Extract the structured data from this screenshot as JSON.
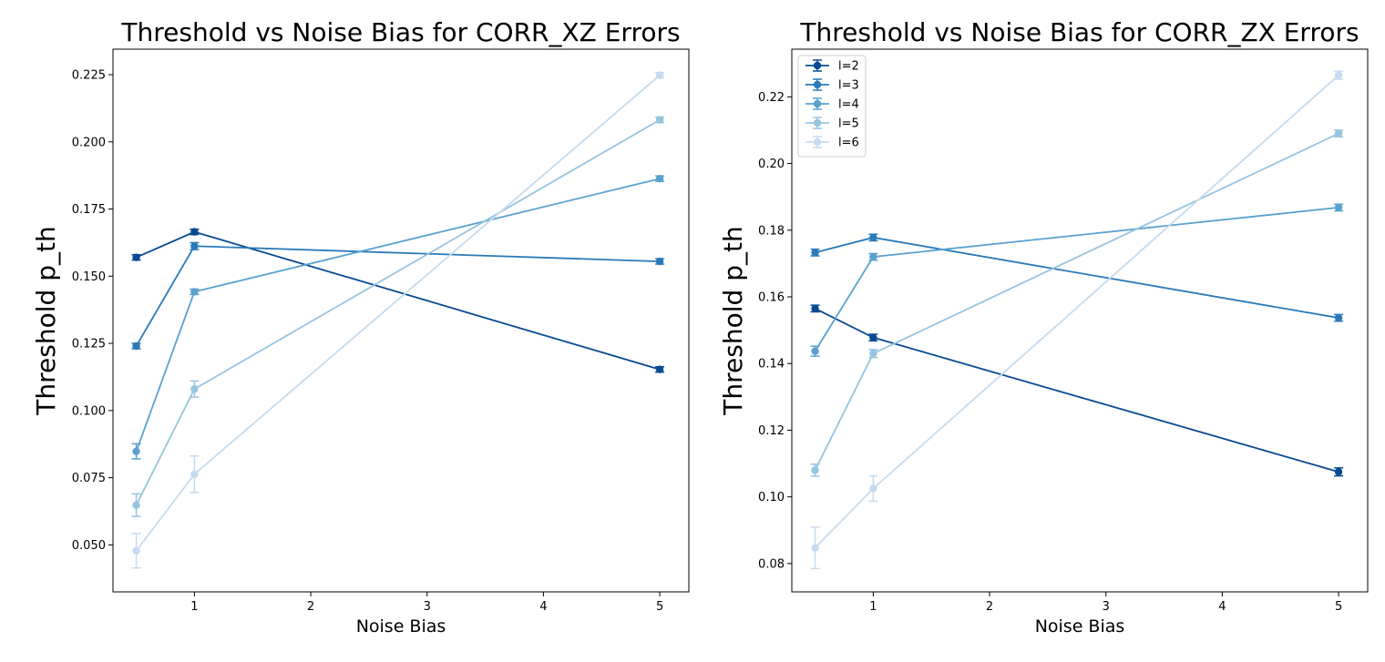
{
  "colors": {
    "l2": "#084a91",
    "l3": "#2a7ab9",
    "l4": "#5aa1cf",
    "l5": "#97c4df",
    "l6": "#c6dbef"
  },
  "chart_data": [
    {
      "type": "line",
      "title": "Threshold vs Noise Bias for CORR_XZ Errors",
      "xlabel": "Noise Bias",
      "ylabel": "Threshold p_th",
      "xlim": [
        0.3,
        5.25
      ],
      "ylim": [
        0.0325,
        0.2345
      ],
      "xticks": [
        1,
        2,
        3,
        4,
        5
      ],
      "xtick_labels": [
        "1",
        "2",
        "3",
        "4",
        "5"
      ],
      "yticks": [
        0.05,
        0.075,
        0.1,
        0.125,
        0.15,
        0.175,
        0.2,
        0.225
      ],
      "ytick_labels": [
        "0.050",
        "0.075",
        "0.100",
        "0.125",
        "0.150",
        "0.175",
        "0.200",
        "0.225"
      ],
      "legend": false,
      "x": [
        0.5,
        1,
        5
      ],
      "series": [
        {
          "name": "l=2",
          "color_key": "l2",
          "values": [
            0.157,
            0.1665,
            0.1153
          ],
          "errors": [
            0.001,
            0.001,
            0.001
          ]
        },
        {
          "name": "l=3",
          "color_key": "l3",
          "values": [
            0.124,
            0.1612,
            0.1555
          ],
          "errors": [
            0.001,
            0.0013,
            0.001
          ]
        },
        {
          "name": "l=4",
          "color_key": "l4",
          "values": [
            0.0848,
            0.1442,
            0.1863
          ],
          "errors": [
            0.0028,
            0.001,
            0.001
          ]
        },
        {
          "name": "l=5",
          "color_key": "l5",
          "values": [
            0.0648,
            0.108,
            0.2082
          ],
          "errors": [
            0.0042,
            0.003,
            0.001
          ]
        },
        {
          "name": "l=6",
          "color_key": "l6",
          "values": [
            0.0478,
            0.0763,
            0.2248
          ],
          "errors": [
            0.0064,
            0.0068,
            0.001
          ]
        }
      ]
    },
    {
      "type": "line",
      "title": "Threshold vs Noise Bias for CORR_ZX Errors",
      "xlabel": "Noise Bias",
      "ylabel": "Threshold p_th",
      "xlim": [
        0.3,
        5.25
      ],
      "ylim": [
        0.0715,
        0.2343
      ],
      "xticks": [
        1,
        2,
        3,
        4,
        5
      ],
      "xtick_labels": [
        "1",
        "2",
        "3",
        "4",
        "5"
      ],
      "yticks": [
        0.08,
        0.1,
        0.12,
        0.14,
        0.16,
        0.18,
        0.2,
        0.22
      ],
      "ytick_labels": [
        "0.08",
        "0.10",
        "0.12",
        "0.14",
        "0.16",
        "0.18",
        "0.20",
        "0.22"
      ],
      "legend": true,
      "legend_loc": "upper-left",
      "x": [
        0.5,
        1,
        5
      ],
      "series": [
        {
          "name": "l=2",
          "color_key": "l2",
          "values": [
            0.1565,
            0.1478,
            0.1075
          ],
          "errors": [
            0.001,
            0.001,
            0.0012
          ]
        },
        {
          "name": "l=3",
          "color_key": "l3",
          "values": [
            0.1733,
            0.1778,
            0.1537
          ],
          "errors": [
            0.001,
            0.001,
            0.001
          ]
        },
        {
          "name": "l=4",
          "color_key": "l4",
          "values": [
            0.1437,
            0.172,
            0.1868
          ],
          "errors": [
            0.0015,
            0.001,
            0.001
          ]
        },
        {
          "name": "l=5",
          "color_key": "l5",
          "values": [
            0.108,
            0.143,
            0.209
          ],
          "errors": [
            0.0018,
            0.0012,
            0.001
          ]
        },
        {
          "name": "l=6",
          "color_key": "l6",
          "values": [
            0.0847,
            0.1025,
            0.2265
          ],
          "errors": [
            0.0062,
            0.0038,
            0.0012
          ]
        }
      ]
    }
  ]
}
